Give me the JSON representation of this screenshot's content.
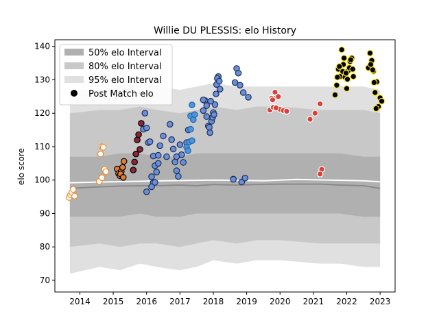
{
  "chart_data": {
    "type": "scatter",
    "title": "Willie DU PLESSIS: elo History",
    "ylabel": "elo score",
    "xlabel": "",
    "xlim": [
      2013.25,
      2023.45
    ],
    "ylim": [
      66.5,
      142
    ],
    "x_ticks": [
      2014,
      2015,
      2016,
      2017,
      2018,
      2019,
      2020,
      2021,
      2022,
      2023
    ],
    "y_ticks": [
      70,
      80,
      90,
      100,
      110,
      120,
      130,
      140
    ],
    "grid": false,
    "legend_position": "top-left",
    "legend": [
      {
        "label": "50% elo Interval",
        "color": "#b0b0b0",
        "kind": "patch"
      },
      {
        "label": "80% elo Interval",
        "color": "#c8c8c8",
        "kind": "patch"
      },
      {
        "label": "95% elo Interval",
        "color": "#e0e0e0",
        "kind": "patch"
      },
      {
        "label": "Post Match elo",
        "color": "#000000",
        "kind": "marker"
      }
    ],
    "bands": {
      "x": [
        2013.7,
        2014.6,
        2015.2,
        2015.8,
        2016.3,
        2017.0,
        2017.5,
        2018.0,
        2018.7,
        2019.3,
        2020.0,
        2021.2,
        2021.8,
        2022.5,
        2023.0
      ],
      "p95_low": [
        72,
        74,
        73,
        75,
        74,
        73,
        74,
        76,
        75,
        76,
        76,
        75,
        75,
        74,
        74
      ],
      "p95_high": [
        127,
        127,
        128,
        129,
        128,
        127,
        128,
        129,
        128,
        128,
        128,
        128,
        128,
        128,
        127
      ],
      "p80_low": [
        80,
        81,
        80,
        81,
        81,
        80,
        81,
        82,
        81,
        82,
        82,
        81,
        81,
        81,
        81
      ],
      "p80_high": [
        120,
        121,
        121,
        122,
        121,
        120,
        121,
        122,
        121,
        122,
        122,
        121,
        121,
        121,
        120
      ],
      "p50_low": [
        89,
        89,
        89,
        90,
        89,
        89,
        90,
        90,
        90,
        90,
        90,
        90,
        90,
        89,
        89
      ],
      "p50_high": [
        107,
        107,
        108,
        108,
        107,
        107,
        108,
        108,
        108,
        108,
        108,
        108,
        108,
        107,
        107
      ]
    },
    "median_line": {
      "x": [
        2013.7,
        2014.6,
        2015.2,
        2015.8,
        2016.3,
        2017.0,
        2017.5,
        2018.0,
        2018.7,
        2019.3,
        2020.0,
        2021.2,
        2021.8,
        2022.5,
        2023.0
      ],
      "y": [
        97.5,
        98.0,
        98.2,
        98.3,
        98.3,
        98.5,
        98.3,
        98.7,
        98.5,
        98.7,
        98.8,
        98.8,
        98.5,
        98.3,
        97.5
      ]
    },
    "reference_line": {
      "x": [
        2013.7,
        2015.0,
        2016.5,
        2018.0,
        2019.5,
        2020.5,
        2021.5,
        2022.5,
        2023.0
      ],
      "y": [
        99.2,
        99.5,
        99.8,
        100.0,
        99.8,
        100.2,
        100.0,
        99.8,
        99.5
      ]
    },
    "series": [
      {
        "fill": "#ffffff",
        "edge": "#f08a2c",
        "x": [
          2013.68,
          2013.72,
          2013.76,
          2013.8,
          2013.84,
          2014.58,
          2014.62,
          2014.66,
          2014.7,
          2014.74,
          2014.78,
          2014.66
        ],
        "y": [
          94.8,
          95.6,
          96.3,
          97.2,
          95.2,
          99.6,
          107.8,
          110.0,
          109.8,
          103.2,
          102.5,
          100.7
        ]
      },
      {
        "fill": "#e07b32",
        "edge": "#000000",
        "x": [
          2015.12,
          2015.16,
          2015.2,
          2015.24,
          2015.28,
          2015.32,
          2015.22,
          2015.3
        ],
        "y": [
          103.3,
          102.0,
          101.3,
          102.6,
          103.8,
          105.6,
          101.8,
          100.8
        ]
      },
      {
        "fill": "#8b2635",
        "edge": "#000000",
        "x": [
          2015.6,
          2015.64,
          2015.68,
          2015.72,
          2015.76,
          2015.8,
          2015.84
        ],
        "y": [
          103.0,
          105.4,
          107.8,
          112.0,
          113.6,
          109.2,
          117.0
        ]
      },
      {
        "fill": "#6b8fd6",
        "edge": "#1c2f5a",
        "x": [
          2015.9,
          2015.95,
          2016.0,
          2016.05,
          2016.1,
          2016.15,
          2016.2,
          2016.25,
          2016.3,
          2016.35,
          2016.4,
          2016.5,
          2016.6,
          2016.7,
          2016.75,
          2016.8,
          2016.85,
          2016.9,
          2016.95,
          2017.0,
          2017.05,
          2017.1,
          2017.2,
          2017.25,
          2016.0,
          2016.15,
          2016.2,
          2016.25,
          2016.35,
          2016.9
        ],
        "y": [
          115.2,
          120.0,
          115.6,
          111.2,
          111.5,
          101.0,
          99.3,
          104.3,
          102.4,
          105.0,
          110.3,
          113.2,
          107.0,
          116.7,
          112.1,
          109.3,
          105.4,
          102.8,
          101.1,
          110.6,
          107.6,
          105.3,
          111.2,
          115.0,
          96.5,
          98.0,
          107.2,
          99.3,
          107.4,
          107.0
        ]
      },
      {
        "fill": "#5b8fd0",
        "edge": "#0a6ec2",
        "x": [
          2017.2,
          2017.24,
          2017.28,
          2017.32,
          2017.36,
          2017.4,
          2017.44,
          2017.32,
          2017.36
        ],
        "y": [
          109.8,
          108.8,
          111.4,
          119.2,
          122.5,
          118.1,
          119.6,
          115.2,
          111.8
        ]
      },
      {
        "fill": "#6b8fd6",
        "edge": "#1c2f5a",
        "x": [
          2017.7,
          2017.75,
          2017.8,
          2017.85,
          2017.9,
          2017.95,
          2018.0,
          2018.05,
          2018.1,
          2018.15,
          2018.2,
          2017.7,
          2017.8,
          2017.88,
          2017.92,
          2017.98,
          2018.02,
          2018.08,
          2018.12,
          2018.18,
          2018.6,
          2018.65,
          2018.7,
          2018.75,
          2018.8,
          2018.85,
          2018.95,
          2019.05,
          2018.6,
          2018.9
        ],
        "y": [
          120.8,
          123.8,
          119.0,
          116.2,
          114.2,
          117.6,
          120.2,
          122.6,
          128.6,
          131.0,
          127.2,
          124.0,
          122.3,
          115.8,
          123.6,
          118.8,
          119.6,
          125.8,
          130.4,
          129.6,
          100.3,
          129.2,
          133.4,
          132.0,
          128.4,
          99.4,
          100.6,
          124.8,
          100.2,
          126.2
        ]
      },
      {
        "fill": "#d9403a",
        "edge": "#ffffff",
        "x": [
          2019.7,
          2019.75,
          2019.8,
          2019.85,
          2019.9,
          2019.95,
          2020.0,
          2020.1,
          2020.2,
          2019.78,
          2019.88,
          2020.9,
          2021.05,
          2021.2,
          2021.25,
          2021.2
        ],
        "y": [
          121.0,
          124.5,
          121.8,
          126.3,
          124.8,
          125.0,
          121.2,
          120.8,
          120.6,
          124.0,
          121.6,
          118.2,
          120.0,
          122.8,
          103.2,
          101.8
        ]
      },
      {
        "fill": "#000000",
        "edge": "#f5e02a",
        "x": [
          2021.65,
          2021.7,
          2021.75,
          2021.8,
          2021.85,
          2021.9,
          2021.95,
          2022.0,
          2022.05,
          2022.1,
          2022.15,
          2022.2,
          2021.78,
          2021.88,
          2021.92,
          2022.02,
          2022.08,
          2022.12,
          2022.18,
          2021.72,
          2021.98,
          2022.65,
          2022.7,
          2022.75,
          2022.8,
          2022.85,
          2022.9,
          2022.95,
          2023.0,
          2023.05,
          2022.72,
          2022.78,
          2022.82,
          2022.88
        ],
        "y": [
          125.5,
          128.4,
          133.2,
          131.0,
          139.0,
          134.6,
          130.8,
          127.4,
          132.8,
          135.5,
          136.5,
          131.0,
          134.0,
          132.5,
          136.5,
          130.2,
          133.6,
          136.0,
          133.2,
          130.8,
          132.0,
          133.6,
          138.0,
          135.8,
          132.6,
          126.2,
          129.4,
          122.0,
          124.6,
          123.6,
          134.6,
          133.0,
          129.2,
          121.4
        ]
      }
    ]
  }
}
